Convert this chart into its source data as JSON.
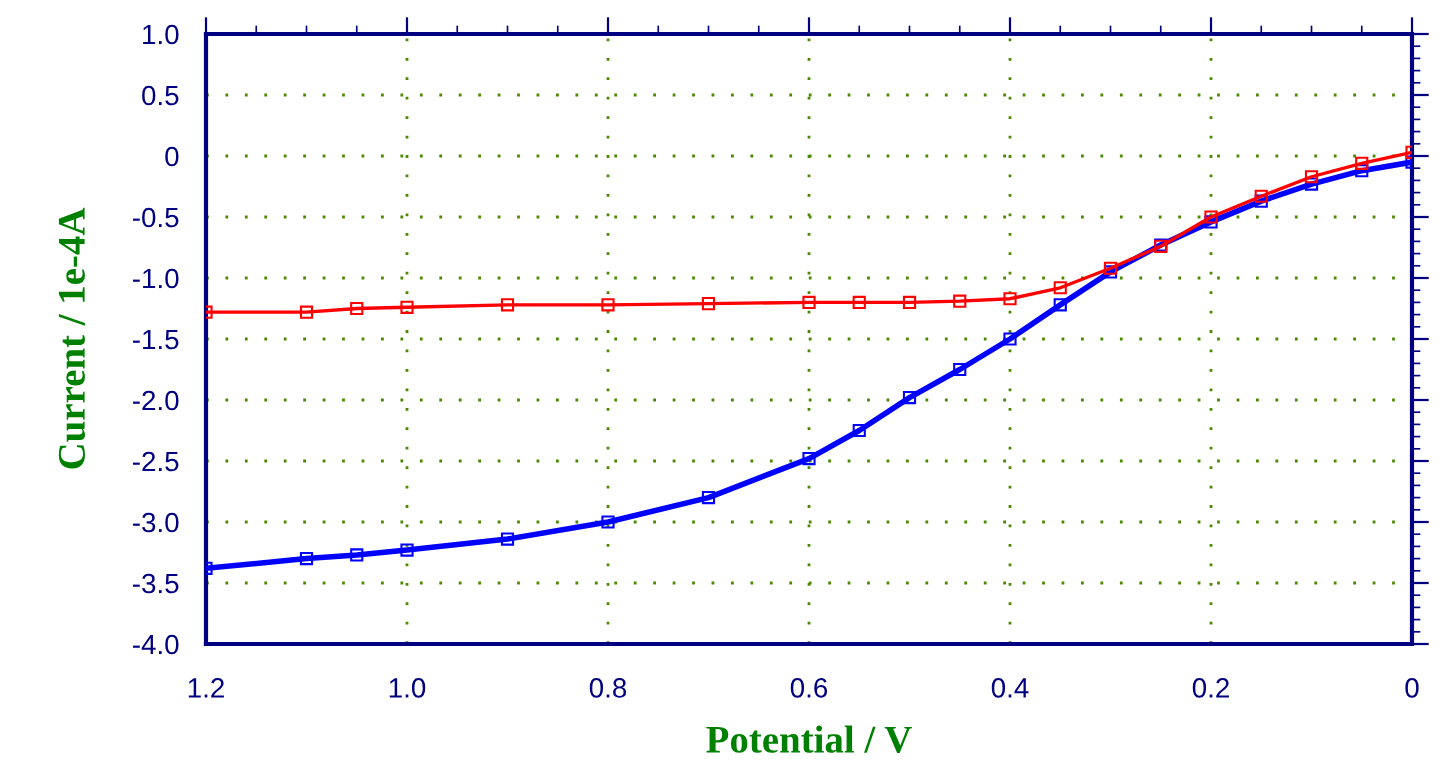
{
  "chart_data": {
    "type": "line",
    "xlabel": "Potential / V",
    "ylabel": "Current / 1e-4A",
    "xlim": [
      1.2,
      0
    ],
    "xticks": [
      {
        "value": 1.2,
        "label": "1.2"
      },
      {
        "value": 1.0,
        "label": "1.0"
      },
      {
        "value": 0.8,
        "label": "0.8"
      },
      {
        "value": 0.6,
        "label": "0.6"
      },
      {
        "value": 0.4,
        "label": "0.4"
      },
      {
        "value": 0.2,
        "label": "0.2"
      },
      0
    ],
    "ylim": [
      -4.0,
      1.0
    ],
    "yticks": [
      {
        "value": -4.0,
        "label": "-4.0"
      },
      {
        "value": -3.5,
        "label": "-3.5"
      },
      {
        "value": -3.0,
        "label": "-3.0"
      },
      {
        "value": -2.5,
        "label": "-2.5"
      },
      {
        "value": -2.0,
        "label": "-2.0"
      },
      {
        "value": -1.5,
        "label": "-1.5"
      },
      {
        "value": -1.0,
        "label": "-1.0"
      },
      {
        "value": -0.5,
        "label": "-0.5"
      },
      0,
      0.5,
      {
        "value": 1.0,
        "label": "1.0"
      }
    ],
    "grid": true,
    "marker": "square",
    "line_style": "solid",
    "x": [
      1.2,
      1.1,
      1.05,
      1.0,
      0.9,
      0.8,
      0.7,
      0.6,
      0.55,
      0.5,
      0.45,
      0.4,
      0.35,
      0.3,
      0.25,
      0.2,
      0.15,
      0.1,
      0.05,
      0.0
    ],
    "series": [
      {
        "color": "#ff0000",
        "values": [
          -1.28,
          -1.28,
          -1.25,
          -1.24,
          -1.22,
          -1.22,
          -1.21,
          -1.2,
          -1.2,
          -1.2,
          -1.19,
          -1.17,
          -1.08,
          -0.92,
          -0.74,
          -0.5,
          -0.33,
          -0.17,
          -0.06,
          0.03
        ]
      },
      {
        "color": "#0000ff",
        "values": [
          -3.38,
          -3.3,
          -3.27,
          -3.23,
          -3.14,
          -3.0,
          -2.8,
          -2.48,
          -2.25,
          -1.98,
          -1.75,
          -1.5,
          -1.22,
          -0.95,
          -0.73,
          -0.54,
          -0.37,
          -0.23,
          -0.12,
          -0.05
        ]
      }
    ]
  }
}
